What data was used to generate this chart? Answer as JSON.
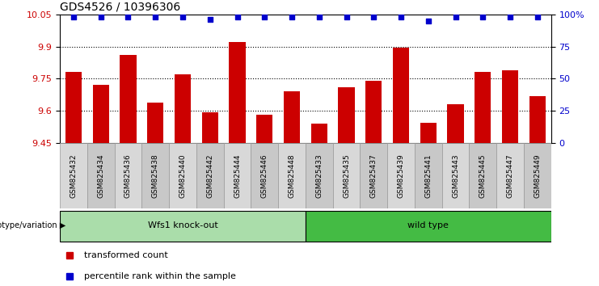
{
  "title": "GDS4526 / 10396306",
  "categories": [
    "GSM825432",
    "GSM825434",
    "GSM825436",
    "GSM825438",
    "GSM825440",
    "GSM825442",
    "GSM825444",
    "GSM825446",
    "GSM825448",
    "GSM825433",
    "GSM825435",
    "GSM825437",
    "GSM825439",
    "GSM825441",
    "GSM825443",
    "GSM825445",
    "GSM825447",
    "GSM825449"
  ],
  "bar_values": [
    9.78,
    9.72,
    9.86,
    9.64,
    9.77,
    9.595,
    9.92,
    9.58,
    9.69,
    9.54,
    9.71,
    9.74,
    9.895,
    9.545,
    9.63,
    9.78,
    9.79,
    9.67
  ],
  "percentile_values": [
    98,
    98,
    98,
    98,
    98,
    96,
    98,
    98,
    98,
    98,
    98,
    98,
    98,
    95,
    98,
    98,
    98,
    98
  ],
  "ymin": 9.45,
  "ymax": 10.05,
  "yticks": [
    9.45,
    9.6,
    9.75,
    9.9,
    10.05
  ],
  "ytick_labels": [
    "9.45",
    "9.6",
    "9.75",
    "9.9",
    "10.05"
  ],
  "gridlines": [
    9.6,
    9.75,
    9.9
  ],
  "right_yticks": [
    0,
    25,
    50,
    75,
    100
  ],
  "group1_label": "Wfs1 knock-out",
  "group2_label": "wild type",
  "group1_count": 9,
  "group2_count": 9,
  "bar_color": "#cc0000",
  "dot_color": "#0000cc",
  "group1_bg": "#aaddaa",
  "group2_bg": "#44bb44",
  "legend_bar_label": "transformed count",
  "legend_dot_label": "percentile rank within the sample",
  "genotype_label": "genotype/variation"
}
